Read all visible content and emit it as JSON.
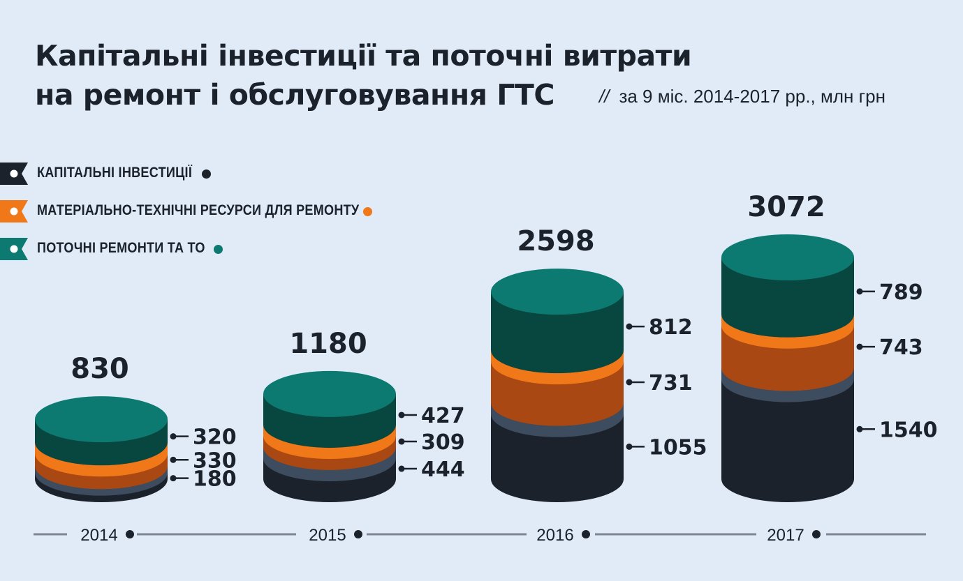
{
  "title": {
    "line1": "Капітальні інвестиції та поточні витрати",
    "line2": "на ремонт і обслуговування ГТС"
  },
  "subtitle": {
    "slashes": "//",
    "text": "за 9 міс. 2014-2017 рр., млн грн"
  },
  "legend": [
    {
      "label": "КАПІТАЛЬНІ ІНВЕСТИЦІЇ",
      "color": "#1b222b"
    },
    {
      "label": "МАТЕРІАЛЬНО-ТЕХНІЧНІ РЕСУРСИ ДЛЯ РЕМОНТУ",
      "color": "#f07818"
    },
    {
      "label": "ПОТОЧНІ РЕМОНТИ ТА ТО",
      "color": "#0d7a72"
    }
  ],
  "chart_data": {
    "type": "bar",
    "stacked": true,
    "style": "3d-cylinder",
    "categories": [
      "2014",
      "2015",
      "2016",
      "2017"
    ],
    "totals": [
      "830",
      "1180",
      "2598",
      "3072"
    ],
    "series": [
      {
        "name": "КАПІТАЛЬНІ ІНВЕСТИЦІЇ",
        "values": [
          180,
          444,
          1055,
          1540
        ],
        "color": "#1b222b"
      },
      {
        "name": "МАТЕРІАЛЬНО-ТЕХНІЧНІ РЕСУРСИ ДЛЯ РЕМОНТУ",
        "values": [
          330,
          309,
          731,
          743
        ],
        "color": "#f07818"
      },
      {
        "name": "ПОТОЧНІ РЕМОНТИ ТА ТО",
        "values": [
          320,
          427,
          812,
          789
        ],
        "color": "#0d7a72"
      }
    ],
    "value_labels": [
      [
        "180",
        "444",
        "1055",
        "1540"
      ],
      [
        "330",
        "309",
        "731",
        "743"
      ],
      [
        "320",
        "427",
        "812",
        "789"
      ]
    ],
    "legend_position": "top-left",
    "grid": false
  }
}
